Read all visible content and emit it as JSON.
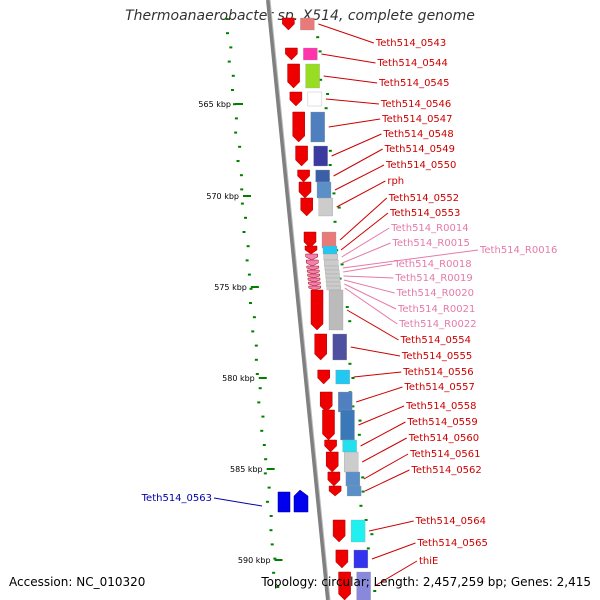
{
  "title": "Thermoanaerobacter sp. X514, complete genome",
  "accession": "Accession: NC_010320",
  "summary": "Topology: circular; Length: 2,457,259 bp; Genes: 2,415",
  "ticks": [
    {
      "label": "565 kbp",
      "kbp": 565
    },
    {
      "label": "570 kbp",
      "kbp": 570
    },
    {
      "label": "575 kbp",
      "kbp": 575
    },
    {
      "label": "580 kbp",
      "kbp": 580
    },
    {
      "label": "585 kbp",
      "kbp": 585
    },
    {
      "label": "590 kbp",
      "kbp": 590
    }
  ],
  "genes": [
    {
      "name": "Teth514_0543",
      "kind": "protein",
      "strand": "+"
    },
    {
      "name": "Teth514_0544",
      "kind": "protein",
      "strand": "+"
    },
    {
      "name": "Teth514_0545",
      "kind": "protein",
      "strand": "+"
    },
    {
      "name": "Teth514_0546",
      "kind": "protein",
      "strand": "+"
    },
    {
      "name": "Teth514_0547",
      "kind": "protein",
      "strand": "+"
    },
    {
      "name": "Teth514_0548",
      "kind": "protein",
      "strand": "+"
    },
    {
      "name": "Teth514_0549",
      "kind": "protein",
      "strand": "+"
    },
    {
      "name": "Teth514_0550",
      "kind": "protein",
      "strand": "+"
    },
    {
      "name": "rph",
      "kind": "protein",
      "strand": "+"
    },
    {
      "name": "Teth514_0552",
      "kind": "protein",
      "strand": "+"
    },
    {
      "name": "Teth514_0553",
      "kind": "protein",
      "strand": "+"
    },
    {
      "name": "Teth514_R0014",
      "kind": "rna",
      "strand": "+"
    },
    {
      "name": "Teth514_R0015",
      "kind": "rna",
      "strand": "+"
    },
    {
      "name": "Teth514_R0016",
      "kind": "rna",
      "strand": "+"
    },
    {
      "name": "Teth514_R0018",
      "kind": "rna",
      "strand": "+"
    },
    {
      "name": "Teth514_R0019",
      "kind": "rna",
      "strand": "+"
    },
    {
      "name": "Teth514_R0020",
      "kind": "rna",
      "strand": "+"
    },
    {
      "name": "Teth514_R0021",
      "kind": "rna",
      "strand": "+"
    },
    {
      "name": "Teth514_R0022",
      "kind": "rna",
      "strand": "+"
    },
    {
      "name": "Teth514_0554",
      "kind": "protein",
      "strand": "+"
    },
    {
      "name": "Teth514_0555",
      "kind": "protein",
      "strand": "+"
    },
    {
      "name": "Teth514_0556",
      "kind": "protein",
      "strand": "+"
    },
    {
      "name": "Teth514_0557",
      "kind": "protein",
      "strand": "+"
    },
    {
      "name": "Teth514_0558",
      "kind": "protein",
      "strand": "+"
    },
    {
      "name": "Teth514_0559",
      "kind": "protein",
      "strand": "+"
    },
    {
      "name": "Teth514_0560",
      "kind": "protein",
      "strand": "+"
    },
    {
      "name": "Teth514_0561",
      "kind": "protein",
      "strand": "+"
    },
    {
      "name": "Teth514_0562",
      "kind": "protein",
      "strand": "+"
    },
    {
      "name": "Teth514_0563",
      "kind": "protein",
      "strand": "-"
    },
    {
      "name": "Teth514_0564",
      "kind": "protein",
      "strand": "+"
    },
    {
      "name": "Teth514_0565",
      "kind": "protein",
      "strand": "+"
    },
    {
      "name": "thiE",
      "kind": "protein",
      "strand": "+"
    }
  ],
  "colors": {
    "forward": "#ee0000",
    "reverse": "#0000ee",
    "rna": "#ee82b4",
    "backbone": "#808080",
    "tick": "#008000",
    "label_forward": "#cc0000",
    "label_reverse": "#0000aa",
    "label_rna": "#e57aa8"
  }
}
